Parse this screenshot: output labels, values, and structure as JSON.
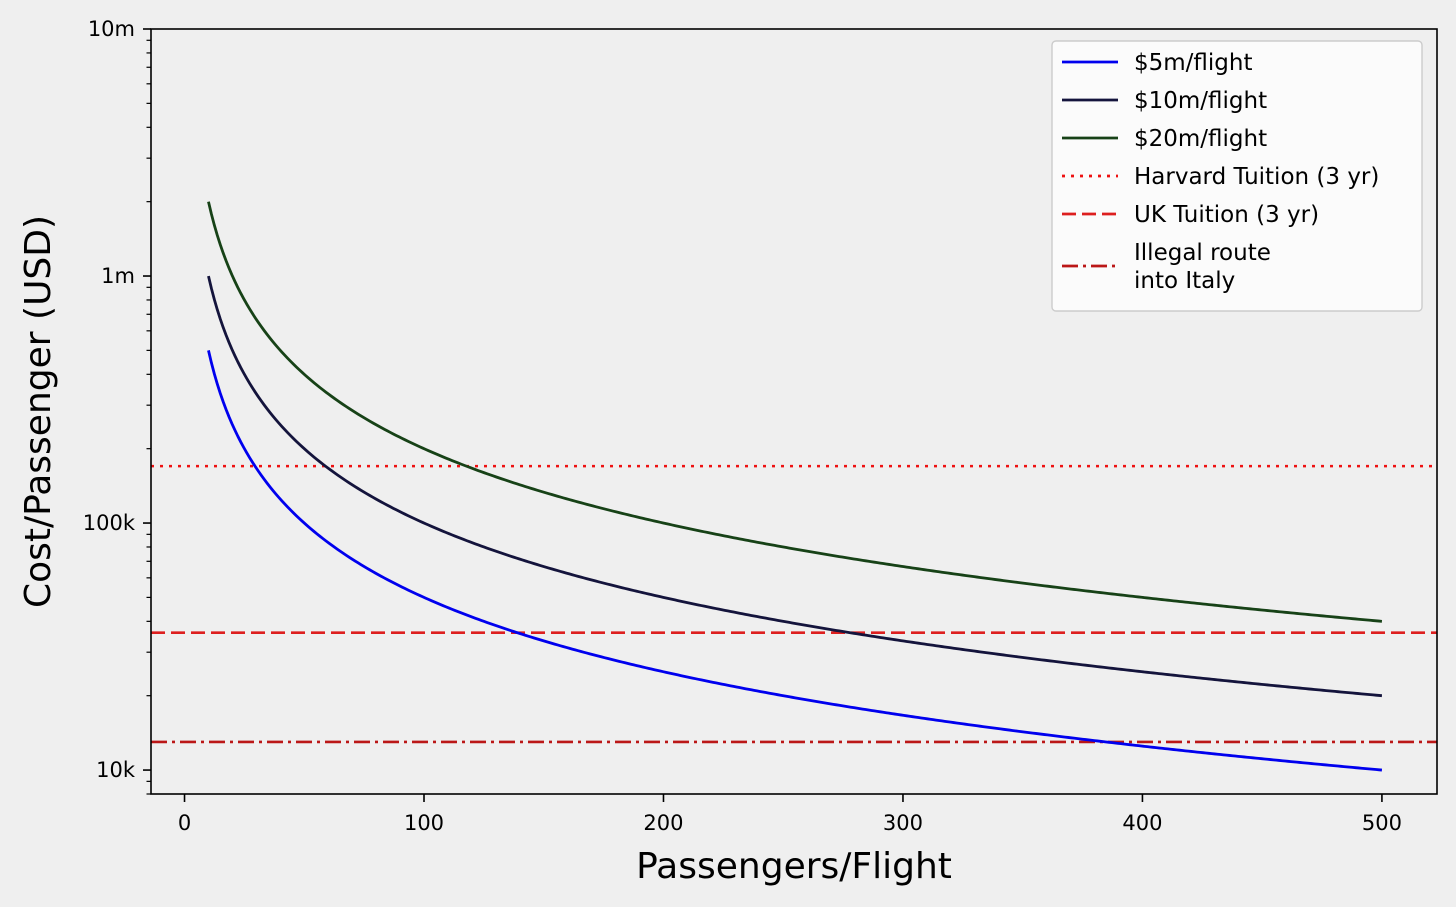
{
  "chart_data": {
    "type": "line",
    "title": "",
    "xlabel": "Passengers/Flight",
    "ylabel": "Cost/Passenger (USD)",
    "xlim": [
      -14,
      523
    ],
    "ylim": [
      8000,
      10000000
    ],
    "yscale": "log",
    "grid": false,
    "legend_position": "top-right",
    "x_ticks": [
      0,
      100,
      200,
      300,
      400,
      500
    ],
    "x_tick_labels": [
      "0",
      "100",
      "200",
      "300",
      "400",
      "500"
    ],
    "y_ticks": [
      10000,
      100000,
      1000000,
      10000000
    ],
    "y_tick_labels": [
      "10k",
      "100k",
      "1m",
      "10m"
    ],
    "series": [
      {
        "name": "$5m/flight",
        "color": "#0000ee",
        "style": "solid",
        "cost_per_flight": 5000000,
        "x": [
          10,
          15,
          20,
          25,
          30,
          40,
          50,
          60,
          75,
          100,
          125,
          150,
          175,
          200,
          250,
          300,
          350,
          400,
          450,
          500
        ],
        "y": [
          500000,
          333333,
          250000,
          200000,
          166667,
          125000,
          100000,
          83333,
          66667,
          50000,
          40000,
          33333,
          28571,
          25000,
          20000,
          16667,
          14286,
          12500,
          11111,
          10000
        ]
      },
      {
        "name": "$10m/flight",
        "color": "#14143c",
        "style": "solid",
        "cost_per_flight": 10000000,
        "x": [
          10,
          15,
          20,
          25,
          30,
          40,
          50,
          60,
          75,
          100,
          125,
          150,
          175,
          200,
          250,
          300,
          350,
          400,
          450,
          500
        ],
        "y": [
          1000000,
          666667,
          500000,
          400000,
          333333,
          250000,
          200000,
          166667,
          133333,
          100000,
          80000,
          66667,
          57143,
          50000,
          40000,
          33333,
          28571,
          25000,
          22222,
          20000
        ]
      },
      {
        "name": "$20m/flight",
        "color": "#174217",
        "style": "solid",
        "cost_per_flight": 20000000,
        "x": [
          10,
          15,
          20,
          25,
          30,
          40,
          50,
          60,
          75,
          100,
          125,
          150,
          175,
          200,
          250,
          300,
          350,
          400,
          450,
          500
        ],
        "y": [
          2000000,
          1333333,
          1000000,
          800000,
          666667,
          500000,
          400000,
          333333,
          266667,
          200000,
          160000,
          133333,
          114286,
          100000,
          80000,
          66667,
          57143,
          50000,
          44444,
          40000
        ]
      }
    ],
    "reference_lines": [
      {
        "name": "Harvard Tuition (3 yr)",
        "y": 170000,
        "color": "#ee1111",
        "style": "dotted"
      },
      {
        "name": "UK Tuition (3 yr)",
        "y": 36000,
        "color": "#dd1f1f",
        "style": "dashed"
      },
      {
        "name": "Illegal route into Italy",
        "legend_lines": [
          "Illegal route",
          "into Italy"
        ],
        "y": 13000,
        "color": "#bb1717",
        "style": "dashdot"
      }
    ]
  }
}
